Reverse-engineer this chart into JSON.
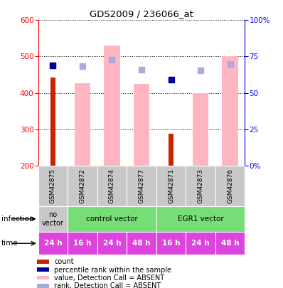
{
  "title": "GDS2009 / 236066_at",
  "samples": [
    "GSM42875",
    "GSM42872",
    "GSM42874",
    "GSM42877",
    "GSM42871",
    "GSM42873",
    "GSM42876"
  ],
  "count_values": [
    443,
    null,
    null,
    null,
    287,
    null,
    null
  ],
  "count_color": "#CC2200",
  "rank_values": [
    null,
    null,
    null,
    null,
    null,
    null,
    null
  ],
  "rank_color": "#00008B",
  "absent_value_bars": [
    null,
    427,
    530,
    424,
    null,
    400,
    500
  ],
  "absent_value_color": "#FFB6C1",
  "absent_rank_dots_val": [
    475,
    473,
    491,
    464,
    null,
    462,
    479
  ],
  "absent_rank_color": "#AAAADD",
  "present_rank_dots_val": [
    475,
    null,
    null,
    null,
    437,
    null,
    null
  ],
  "present_rank_color": "#000099",
  "ylim": [
    200,
    600
  ],
  "yticks": [
    200,
    300,
    400,
    500,
    600
  ],
  "y2lim": [
    0,
    100
  ],
  "y2ticks": [
    0,
    25,
    50,
    75,
    100
  ],
  "y2ticklabels": [
    "0%",
    "25",
    "50",
    "75",
    "100%"
  ],
  "time_labels": [
    "24 h",
    "16 h",
    "24 h",
    "48 h",
    "16 h",
    "24 h",
    "48 h"
  ],
  "time_color": "#DD44DD",
  "legend_items": [
    {
      "color": "#CC2200",
      "label": "count"
    },
    {
      "color": "#000099",
      "label": "percentile rank within the sample"
    },
    {
      "color": "#FFB6C1",
      "label": "value, Detection Call = ABSENT"
    },
    {
      "color": "#AAAADD",
      "label": "rank, Detection Call = ABSENT"
    }
  ],
  "bar_bottom": 200,
  "no_vector_color": "#C8C8C8",
  "control_vector_color": "#77DD77",
  "egr1_vector_color": "#77DD77",
  "sample_box_color": "#C8C8C8"
}
